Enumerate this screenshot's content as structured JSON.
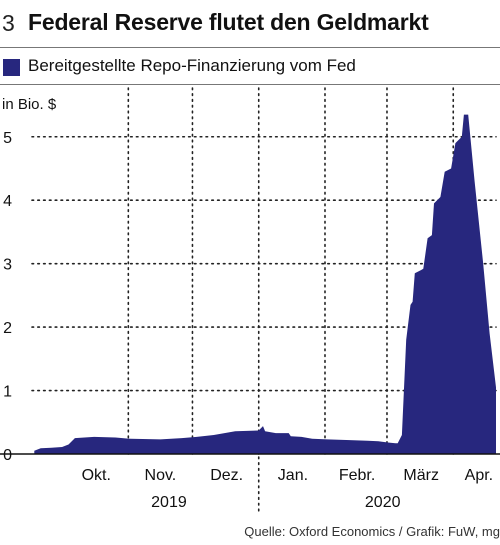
{
  "figure": {
    "number": "3",
    "title": "Federal Reserve flutet den Geldmarkt",
    "source": "Quelle: Oxford Economics / Grafik: FuW, mg"
  },
  "colors": {
    "series": "#27277e",
    "grid": "#222222",
    "text": "#111111"
  },
  "chart_data": {
    "type": "area",
    "title": "Federal Reserve flutet den Geldmarkt",
    "ylabel": "in Bio. $",
    "xlabel": "",
    "ylim": [
      0,
      5.8
    ],
    "yticks": [
      0,
      1,
      2,
      3,
      4,
      5
    ],
    "grid": true,
    "legend": "top-left",
    "x_range": [
      "2019-09-15",
      "2020-04-20"
    ],
    "month_labels": [
      {
        "label": "Okt.",
        "date": "2019-10-16"
      },
      {
        "label": "Nov.",
        "date": "2019-11-15"
      },
      {
        "label": "Dez.",
        "date": "2019-12-16"
      },
      {
        "label": "Jan.",
        "date": "2020-01-16"
      },
      {
        "label": "Febr.",
        "date": "2020-02-15"
      },
      {
        "label": "März",
        "date": "2020-03-16"
      },
      {
        "label": "Apr.",
        "date": "2020-04-12"
      }
    ],
    "gridline_dates": [
      "2019-10-31",
      "2019-11-30",
      "2019-12-31",
      "2020-01-31",
      "2020-02-29",
      "2020-03-31"
    ],
    "year_labels": [
      {
        "label": "2019",
        "date": "2019-11-19"
      },
      {
        "label": "2020",
        "date": "2020-02-27"
      }
    ],
    "year_divider_date": "2019-12-31",
    "series": [
      {
        "name": "Bereitgestellte Repo-Finanzierung vom Fed",
        "points": [
          [
            "2019-09-17",
            0.05
          ],
          [
            "2019-09-20",
            0.09
          ],
          [
            "2019-09-25",
            0.1
          ],
          [
            "2019-09-30",
            0.11
          ],
          [
            "2019-10-03",
            0.15
          ],
          [
            "2019-10-06",
            0.25
          ],
          [
            "2019-10-15",
            0.27
          ],
          [
            "2019-10-25",
            0.26
          ],
          [
            "2019-11-01",
            0.24
          ],
          [
            "2019-11-15",
            0.23
          ],
          [
            "2019-11-25",
            0.25
          ],
          [
            "2019-12-02",
            0.27
          ],
          [
            "2019-12-10",
            0.3
          ],
          [
            "2019-12-17",
            0.34
          ],
          [
            "2019-12-20",
            0.36
          ],
          [
            "2019-12-31",
            0.37
          ],
          [
            "2020-01-02",
            0.44
          ],
          [
            "2020-01-03",
            0.36
          ],
          [
            "2020-01-08",
            0.33
          ],
          [
            "2020-01-14",
            0.33
          ],
          [
            "2020-01-15",
            0.28
          ],
          [
            "2020-01-20",
            0.27
          ],
          [
            "2020-01-25",
            0.24
          ],
          [
            "2020-02-01",
            0.23
          ],
          [
            "2020-02-10",
            0.22
          ],
          [
            "2020-02-20",
            0.21
          ],
          [
            "2020-02-25",
            0.2
          ],
          [
            "2020-03-01",
            0.18
          ],
          [
            "2020-03-04",
            0.17
          ],
          [
            "2020-03-05",
            0.17
          ],
          [
            "2020-03-07",
            0.3
          ],
          [
            "2020-03-09",
            1.8
          ],
          [
            "2020-03-11",
            2.35
          ],
          [
            "2020-03-12",
            2.4
          ],
          [
            "2020-03-13",
            2.85
          ],
          [
            "2020-03-16",
            2.9
          ],
          [
            "2020-03-17",
            2.92
          ],
          [
            "2020-03-19",
            3.4
          ],
          [
            "2020-03-21",
            3.45
          ],
          [
            "2020-03-22",
            3.95
          ],
          [
            "2020-03-25",
            4.05
          ],
          [
            "2020-03-27",
            4.45
          ],
          [
            "2020-03-30",
            4.5
          ],
          [
            "2020-04-01",
            4.9
          ],
          [
            "2020-04-04",
            5.0
          ],
          [
            "2020-04-05",
            5.35
          ],
          [
            "2020-04-07",
            5.35
          ],
          [
            "2020-04-10",
            4.3
          ],
          [
            "2020-04-14",
            3.0
          ],
          [
            "2020-04-17",
            1.9
          ],
          [
            "2020-04-20",
            1.05
          ]
        ]
      }
    ]
  }
}
